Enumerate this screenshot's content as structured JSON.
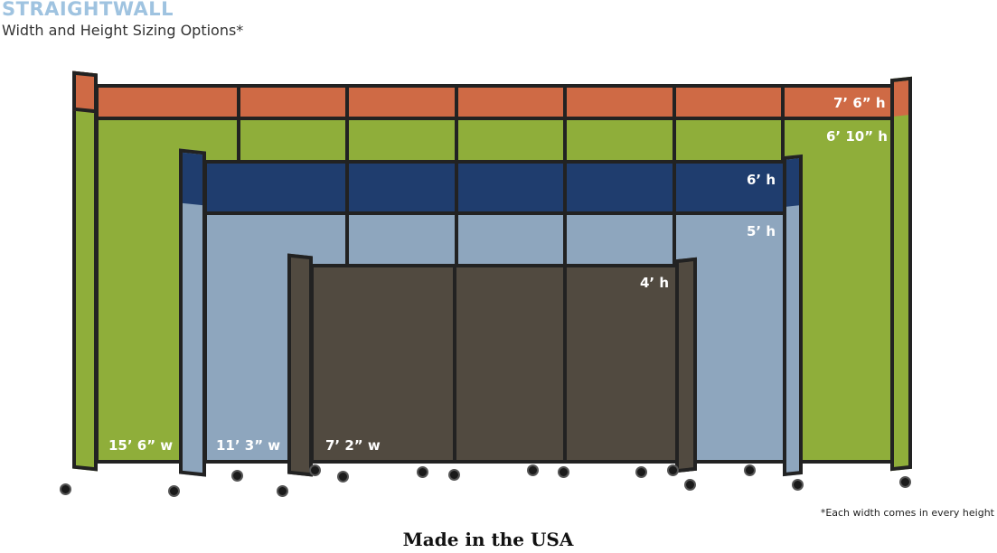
{
  "header": {
    "brand": "STRAIGHTWALL",
    "subtitle": "Width and Height Sizing Options*"
  },
  "colors": {
    "green": "#8fae3a",
    "orange": "#cf6a45",
    "navy": "#1f3d6e",
    "light_blue": "#8ea6be",
    "brown": "#514a40",
    "brand": "#9fc3e0"
  },
  "heights": [
    "7’ 6” h",
    "6’ 10” h",
    "6’ h",
    "5’ h",
    "4’ h"
  ],
  "widths": [
    "15’ 6” w",
    "11’ 3” w",
    "7’ 2” w"
  ],
  "footnote": "*Each width comes in every height",
  "made_in": "Made in the USA"
}
